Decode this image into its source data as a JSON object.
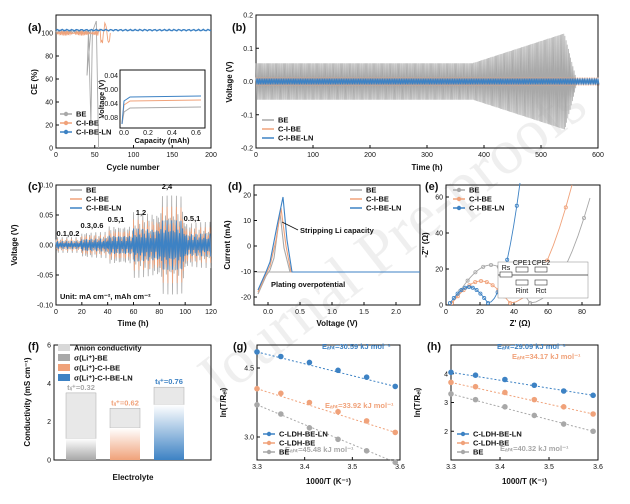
{
  "colors": {
    "BE": "#a8a8a8",
    "CIBE": "#f0a27a",
    "CIBELN": "#3d82c4",
    "fitBE": "#9a9a9a",
    "fitCIBE": "#f0a27a",
    "fitCIBELN": "#3d82c4"
  },
  "watermark": "Journal Pre-proofs",
  "chart_data": [
    {
      "id": "a",
      "type": "line",
      "label": "(a)",
      "xlabel": "Cycle number",
      "ylabel": "CE (%)",
      "xlim": [
        0,
        200
      ],
      "ylim": [
        0,
        110
      ],
      "xticks": [
        "0",
        "50",
        "100",
        "150",
        "200"
      ],
      "yticks": [
        "0",
        "20",
        "40",
        "60",
        "80",
        "100"
      ],
      "series": [
        {
          "name": "BE",
          "color": "#a8a8a8"
        },
        {
          "name": "C-I-BE",
          "color": "#f0a27a"
        },
        {
          "name": "C-I-BE-LN",
          "color": "#3d82c4"
        }
      ],
      "inset": {
        "xlabel": "Capacity (mAh)",
        "ylabel": "Voltage (V)",
        "xticks": [
          "0.0",
          "0.2",
          "0.4",
          "0.6"
        ],
        "yticks": [
          "0.04",
          "0.00",
          "-0.04",
          "-0.08"
        ]
      }
    },
    {
      "id": "b",
      "type": "line",
      "label": "(b)",
      "xlabel": "Time (h)",
      "ylabel": "Voltage (V)",
      "xlim": [
        0,
        600
      ],
      "ylim": [
        -0.2,
        0.2
      ],
      "xticks": [
        "0",
        "100",
        "200",
        "300",
        "400",
        "500",
        "600"
      ],
      "yticks": [
        "-0.2",
        "-0.1",
        "0.0",
        "0.1",
        "0.2"
      ],
      "series": [
        {
          "name": "BE",
          "color": "#a8a8a8"
        },
        {
          "name": "C-I-BE",
          "color": "#f0a27a"
        },
        {
          "name": "C-I-BE-LN",
          "color": "#3d82c4"
        }
      ]
    },
    {
      "id": "c",
      "type": "line",
      "label": "(c)",
      "xlabel": "Time (h)",
      "ylabel": "Voltage (V)",
      "xlim": [
        0,
        120
      ],
      "ylim": [
        -0.1,
        0.1
      ],
      "xticks": [
        "0",
        "20",
        "40",
        "60",
        "80",
        "100",
        "120"
      ],
      "yticks": [
        "-0.10",
        "-0.05",
        "0.00",
        "0.05",
        "0.10"
      ],
      "series": [
        {
          "name": "BE",
          "color": "#a8a8a8"
        },
        {
          "name": "C-I-BE",
          "color": "#f0a27a"
        },
        {
          "name": "C-I-BE-LN",
          "color": "#3d82c4"
        }
      ],
      "annotations": [
        "0.1,0.2",
        "0.3,0.6",
        "0.5,1",
        "1,2",
        "2,4",
        "0.5,1"
      ],
      "unit": "Unit: mA cm⁻², mAh cm⁻²"
    },
    {
      "id": "d",
      "type": "line",
      "label": "(d)",
      "xlabel": "Voltage (V)",
      "ylabel": "Current (mA)",
      "xlim": [
        -0.5,
        2.5
      ],
      "ylim": [
        -25,
        25
      ],
      "xticks": [
        "0.0",
        "0.5",
        "1.0",
        "1.5",
        "2.0"
      ],
      "yticks": [
        "-20",
        "-10",
        "0",
        "10",
        "20"
      ],
      "series": [
        {
          "name": "BE",
          "color": "#a8a8a8"
        },
        {
          "name": "C-I-BE",
          "color": "#f0a27a"
        },
        {
          "name": "C-I-BE-LN",
          "color": "#3d82c4"
        }
      ],
      "annotations": [
        "Stripping Li capacity",
        "Plating overpotential"
      ]
    },
    {
      "id": "e",
      "type": "scatter",
      "label": "(e)",
      "xlabel": "Z' (Ω)",
      "ylabel": "-Z'' (Ω)",
      "xlim": [
        0,
        90
      ],
      "ylim": [
        0,
        65
      ],
      "xticks": [
        "0",
        "20",
        "40",
        "60",
        "80"
      ],
      "yticks": [
        "0",
        "20",
        "40",
        "60"
      ],
      "series": [
        {
          "name": "BE",
          "color": "#a8a8a8"
        },
        {
          "name": "C-I-BE",
          "color": "#f0a27a"
        },
        {
          "name": "C-I-BE-LN",
          "color": "#3d82c4"
        }
      ],
      "circuit": [
        "Rs",
        "CPE1",
        "CPE2",
        "Rint",
        "Rct"
      ]
    },
    {
      "id": "f",
      "type": "bar",
      "label": "(f)",
      "xlabel": "Electrolyte",
      "ylabel": "Conductivity (mS cm⁻¹)",
      "ylim": [
        0,
        6
      ],
      "yticks": [
        "0",
        "2",
        "4",
        "6"
      ],
      "legend": [
        "Anion conductivity",
        "σ(Li⁺)-BE",
        "σ(Li⁺)-C-I-BE",
        "σ(Li⁺)-C-I-BE-LN"
      ],
      "bars": [
        {
          "t": 0.32,
          "total": 3.5,
          "label": "tₗᵢ⁺=0.32",
          "color": "#a8a8a8"
        },
        {
          "t": 0.62,
          "total": 2.7,
          "label": "tₗᵢ⁺=0.62",
          "color": "#f0a27a"
        },
        {
          "t": 0.76,
          "total": 3.8,
          "label": "tₗᵢ⁺=0.76",
          "color": "#3d82c4"
        }
      ]
    },
    {
      "id": "g",
      "type": "scatter",
      "label": "(g)",
      "xlabel": "1000/T (K⁻¹)",
      "ylabel": "ln(T/Rₑₗ)",
      "xlim": [
        3.3,
        3.6
      ],
      "ylim": [
        2.5,
        5.0
      ],
      "xticks": [
        "3.3",
        "3.4",
        "3.5",
        "3.6"
      ],
      "yticks": [
        "3.0",
        "4.5"
      ],
      "series": [
        {
          "name": "C-LDH-BE-LN",
          "color": "#3d82c4",
          "x": [
            3.3,
            3.35,
            3.41,
            3.47,
            3.53,
            3.59
          ],
          "y": [
            4.85,
            4.75,
            4.62,
            4.45,
            4.3,
            4.1
          ]
        },
        {
          "name": "C-LDH-BE",
          "color": "#f0a27a",
          "x": [
            3.3,
            3.35,
            3.41,
            3.47,
            3.53,
            3.59
          ],
          "y": [
            4.05,
            3.95,
            3.75,
            3.55,
            3.35,
            3.1
          ]
        },
        {
          "name": "BE",
          "color": "#a8a8a8",
          "x": [
            3.3,
            3.35,
            3.41,
            3.47,
            3.53,
            3.59
          ],
          "y": [
            3.7,
            3.5,
            3.2,
            2.95,
            2.7,
            2.45
          ]
        }
      ],
      "energies": [
        {
          "text": "Eₐₕₜ=30.59 kJ mol⁻¹",
          "color": "#3d82c4"
        },
        {
          "text": "Eₐₕₜ=33.92 kJ mol⁻¹",
          "color": "#f0a27a"
        },
        {
          "text": "Eₐₕₜ=45.48 kJ mol⁻¹",
          "color": "#a8a8a8"
        }
      ]
    },
    {
      "id": "h",
      "type": "scatter",
      "label": "(h)",
      "xlabel": "1000/T (K⁻¹)",
      "ylabel": "ln(T/Rₑₗ)",
      "xlim": [
        3.3,
        3.6
      ],
      "ylim": [
        1.0,
        5.0
      ],
      "xticks": [
        "3.3",
        "3.4",
        "3.5",
        "3.6"
      ],
      "yticks": [
        "2",
        "3",
        "4"
      ],
      "series": [
        {
          "name": "C-LDH-BE-LN",
          "color": "#3d82c4",
          "x": [
            3.3,
            3.35,
            3.41,
            3.47,
            3.53,
            3.59
          ],
          "y": [
            4.05,
            3.95,
            3.8,
            3.6,
            3.4,
            3.25
          ]
        },
        {
          "name": "C-LDH-BE",
          "color": "#f0a27a",
          "x": [
            3.3,
            3.35,
            3.41,
            3.47,
            3.53,
            3.59
          ],
          "y": [
            3.7,
            3.55,
            3.35,
            3.1,
            2.85,
            2.6
          ]
        },
        {
          "name": "BE",
          "color": "#a8a8a8",
          "x": [
            3.3,
            3.35,
            3.41,
            3.47,
            3.53,
            3.59
          ],
          "y": [
            3.3,
            3.1,
            2.85,
            2.55,
            2.25,
            2.0
          ]
        }
      ],
      "energies": [
        {
          "text": "Eₐₕₜ=29.09 kJ mol⁻¹",
          "color": "#3d82c4"
        },
        {
          "text": "Eₐₕₜ=34.17 kJ mol⁻¹",
          "color": "#f0a27a"
        },
        {
          "text": "Eₐₕₜ=40.32 kJ mol⁻¹",
          "color": "#a8a8a8"
        }
      ]
    }
  ]
}
